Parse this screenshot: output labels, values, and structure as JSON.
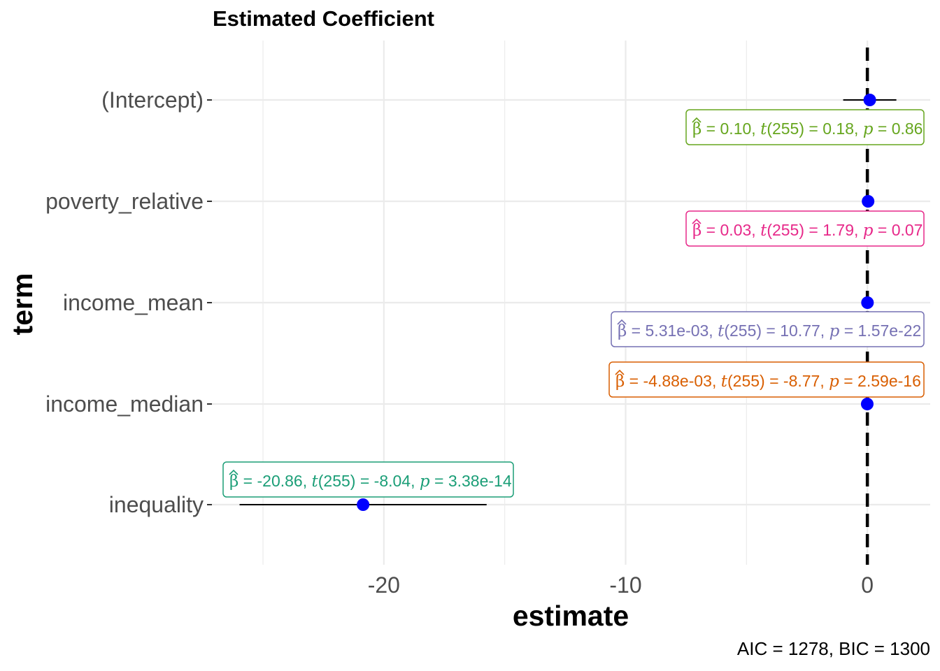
{
  "chart_data": {
    "type": "scatter",
    "title": "Estimated Coefficient",
    "xlabel": "estimate",
    "ylabel": "term",
    "xlim": [
      -27.2,
      2.6
    ],
    "x_ticks": [
      -20,
      -10,
      0
    ],
    "x_tick_labels": [
      "-20",
      "-10",
      "0"
    ],
    "grid": true,
    "reference_line_x": 0,
    "caption": "AIC = 1278, BIC = 1300",
    "point_color": "#0000ff",
    "terms": [
      {
        "term": "(Intercept)",
        "estimate": 0.1,
        "ci_low": -1.0,
        "ci_high": 1.2,
        "label_beta": "0.10",
        "label_t": "0.18",
        "label_p": "0.86",
        "color": "#66a61e"
      },
      {
        "term": "poverty_relative",
        "estimate": 0.03,
        "ci_low": 0.0,
        "ci_high": 0.06,
        "label_beta": "0.03",
        "label_t": "1.79",
        "label_p": "0.07",
        "color": "#e7298a"
      },
      {
        "term": "income_mean",
        "estimate": 0.00531,
        "ci_low": 0.0044,
        "ci_high": 0.0062,
        "label_beta": "5.31e-03",
        "label_t": "10.77",
        "label_p": "1.57e-22",
        "color": "#7570b3"
      },
      {
        "term": "income_median",
        "estimate": -0.00488,
        "ci_low": -0.006,
        "ci_high": -0.0038,
        "label_beta": "-4.88e-03",
        "label_t": "-8.77",
        "label_p": "2.59e-16",
        "color": "#d95f02"
      },
      {
        "term": "inequality",
        "estimate": -20.86,
        "ci_low": -25.97,
        "ci_high": -15.75,
        "label_beta": "-20.86",
        "label_t": "-8.04",
        "label_p": "3.38e-14",
        "color": "#1b9e77"
      }
    ],
    "t_df": "255"
  }
}
